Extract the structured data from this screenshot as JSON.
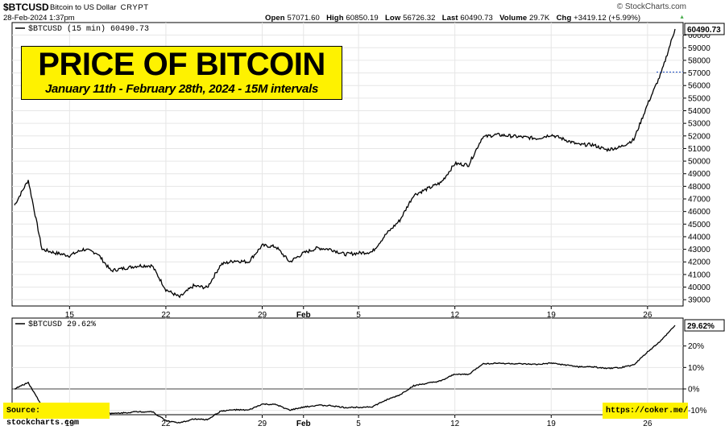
{
  "header": {
    "symbol": "$BTCUSD",
    "description": "Bitcoin to US Dollar",
    "exchange": "CRYPT",
    "datetime": "28-Feb-2024 1:37pm",
    "brand": "© StockCharts.com",
    "open_label": "Open",
    "open": "57071.60",
    "high_label": "High",
    "high": "60850.19",
    "low_label": "Low",
    "low": "56726.32",
    "last_label": "Last",
    "last": "60490.73",
    "volume_label": "Volume",
    "volume": "29.7K",
    "chg_label": "Chg",
    "chg": "+3419.12 (+5.99%)"
  },
  "title": {
    "main": "PRICE OF BITCOIN",
    "sub": "January 11th - February 28th, 2024 - 15M intervals"
  },
  "footer": {
    "source": "Source: stockcharts.com",
    "link": "https://coker.me/"
  },
  "colors": {
    "line": "#000000",
    "grid": "#e6e6e6",
    "highlight": "#fef200",
    "accent_line": "#1f4fc4",
    "up": "#4caf50"
  },
  "chart_data": [
    {
      "type": "line",
      "legend": "$BTCUSD (15 min) 60490.73",
      "last_value_label": "60490.73",
      "x_tick_labels": [
        "15",
        "22",
        "29",
        "Feb",
        "5",
        "12",
        "19",
        "26"
      ],
      "y_tick_labels": [
        39000,
        40000,
        41000,
        42000,
        43000,
        44000,
        45000,
        46000,
        47000,
        48000,
        49000,
        50000,
        51000,
        52000,
        53000,
        54000,
        55000,
        56000,
        57000,
        58000,
        59000,
        60000
      ],
      "ylim": [
        38500,
        61000
      ],
      "grid": true,
      "series": [
        {
          "x": [
            "Jan 11",
            "Jan 12",
            "Jan 13",
            "Jan 14",
            "Jan 15",
            "Jan 16",
            "Jan 17",
            "Jan 18",
            "Jan 19",
            "Jan 20",
            "Jan 21",
            "Jan 22",
            "Jan 23",
            "Jan 24",
            "Jan 25",
            "Jan 26",
            "Jan 27",
            "Jan 28",
            "Jan 29",
            "Jan 30",
            "Jan 31",
            "Feb 1",
            "Feb 2",
            "Feb 3",
            "Feb 4",
            "Feb 5",
            "Feb 6",
            "Feb 7",
            "Feb 8",
            "Feb 9",
            "Feb 10",
            "Feb 11",
            "Feb 12",
            "Feb 13",
            "Feb 14",
            "Feb 15",
            "Feb 16",
            "Feb 17",
            "Feb 18",
            "Feb 19",
            "Feb 20",
            "Feb 21",
            "Feb 22",
            "Feb 23",
            "Feb 24",
            "Feb 25",
            "Feb 26",
            "Feb 27",
            "Feb 28"
          ],
          "y": [
            46500,
            48500,
            43000,
            42700,
            42500,
            43000,
            42700,
            41300,
            41500,
            41700,
            41700,
            39800,
            39200,
            40100,
            39950,
            41800,
            42100,
            42000,
            43300,
            43200,
            42000,
            42700,
            43100,
            43000,
            42600,
            42700,
            42800,
            44200,
            45300,
            47300,
            47800,
            48300,
            49800,
            49700,
            51900,
            52100,
            52000,
            51900,
            51800,
            52100,
            51700,
            51300,
            51300,
            50900,
            51100,
            51700,
            54500,
            57000,
            60490
          ]
        }
      ]
    },
    {
      "type": "line",
      "legend": "$BTCUSD 29.62%",
      "last_value_label": "29.62%",
      "x_tick_labels": [
        "15",
        "22",
        "29",
        "Feb",
        "5",
        "12",
        "19",
        "26"
      ],
      "y_tick_labels": [
        "-10%",
        "0%",
        "10%",
        "20%"
      ],
      "ylim": [
        -12,
        33
      ],
      "grid": true,
      "series": [
        {
          "x": [
            "Jan 11",
            "Jan 12",
            "Jan 13",
            "Jan 14",
            "Jan 15",
            "Jan 16",
            "Jan 17",
            "Jan 18",
            "Jan 19",
            "Jan 20",
            "Jan 21",
            "Jan 22",
            "Jan 23",
            "Jan 24",
            "Jan 25",
            "Jan 26",
            "Jan 27",
            "Jan 28",
            "Jan 29",
            "Jan 30",
            "Jan 31",
            "Feb 1",
            "Feb 2",
            "Feb 3",
            "Feb 4",
            "Feb 5",
            "Feb 6",
            "Feb 7",
            "Feb 8",
            "Feb 9",
            "Feb 10",
            "Feb 11",
            "Feb 12",
            "Feb 13",
            "Feb 14",
            "Feb 15",
            "Feb 16",
            "Feb 17",
            "Feb 18",
            "Feb 19",
            "Feb 20",
            "Feb 21",
            "Feb 22",
            "Feb 23",
            "Feb 24",
            "Feb 25",
            "Feb 26",
            "Feb 27",
            "Feb 28"
          ],
          "y": [
            0,
            3,
            -7.9,
            -8.5,
            -8.9,
            -7.8,
            -8.5,
            -11.5,
            -11.1,
            -10.6,
            -10.6,
            -14.7,
            -15.9,
            -14,
            -14.3,
            -10.3,
            -9.7,
            -9.9,
            -7.1,
            -7.3,
            -9.9,
            -8.5,
            -7.6,
            -7.8,
            -8.7,
            -8.5,
            -8.3,
            -5.2,
            -2.8,
            1.5,
            2.6,
            3.7,
            6.9,
            6.7,
            11.6,
            12,
            11.8,
            11.6,
            11.4,
            12,
            11.2,
            10.3,
            10.3,
            9.5,
            9.9,
            11.2,
            17.2,
            22.6,
            29.62
          ]
        }
      ]
    }
  ]
}
